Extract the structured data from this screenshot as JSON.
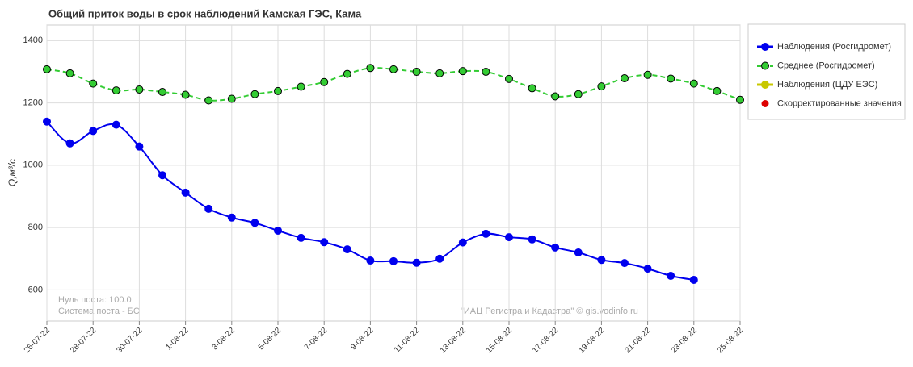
{
  "chart_data": {
    "type": "line",
    "title": "Общий приток воды в срок наблюдений Камская ГЭС,  Кама",
    "y_label": "Q,м³/с",
    "annotations": [
      "Нуль поста: 100.0",
      "Система поста - БС",
      "\"ИАЦ Регистра и Кадастра\" © gis.vodinfo.ru"
    ],
    "categories": [
      "26-07-22",
      null,
      "28-07-22",
      null,
      "30-07-22",
      null,
      "1-08-22",
      null,
      "3-08-22",
      null,
      "5-08-22",
      null,
      "7-08-22",
      null,
      "9-08-22",
      null,
      "11-08-22",
      null,
      "13-08-22",
      null,
      "15-08-22",
      null,
      "17-08-22",
      null,
      "19-08-22",
      null,
      "21-08-22",
      null,
      "23-08-22",
      null,
      "25-08-22"
    ],
    "series": [
      {
        "name": "Наблюдения (Росгидромет)",
        "color": "#0000ee",
        "dashed": false,
        "values": [
          1140,
          1070,
          1110,
          1130,
          1060,
          968,
          912,
          860,
          832,
          815,
          790,
          767,
          753,
          730,
          694,
          692,
          687,
          700,
          752,
          780,
          769,
          762,
          736,
          720,
          696,
          686,
          668,
          645,
          632,
          null,
          null
        ]
      },
      {
        "name": "Среднее (Росгидромет)",
        "color": "#33cc33",
        "dashed": true,
        "values": [
          1308,
          1295,
          1262,
          1240,
          1243,
          1235,
          1226,
          1208,
          1213,
          1228,
          1238,
          1252,
          1267,
          1293,
          1312,
          1308,
          1300,
          1295,
          1302,
          1300,
          1277,
          1247,
          1221,
          1228,
          1253,
          1279,
          1290,
          1278,
          1262,
          1238,
          1210
        ]
      },
      {
        "name": "Наблюдения (ЦДУ ЕЭС)",
        "color": "#c8c800",
        "dashed": false
      },
      {
        "name": "Скорректированные значения",
        "color": "#dd0000",
        "dashed": false
      }
    ],
    "ylim": [
      500,
      1450
    ],
    "yticks": [
      600,
      800,
      1000,
      1200,
      1400
    ],
    "grid": true,
    "legend": "right"
  }
}
